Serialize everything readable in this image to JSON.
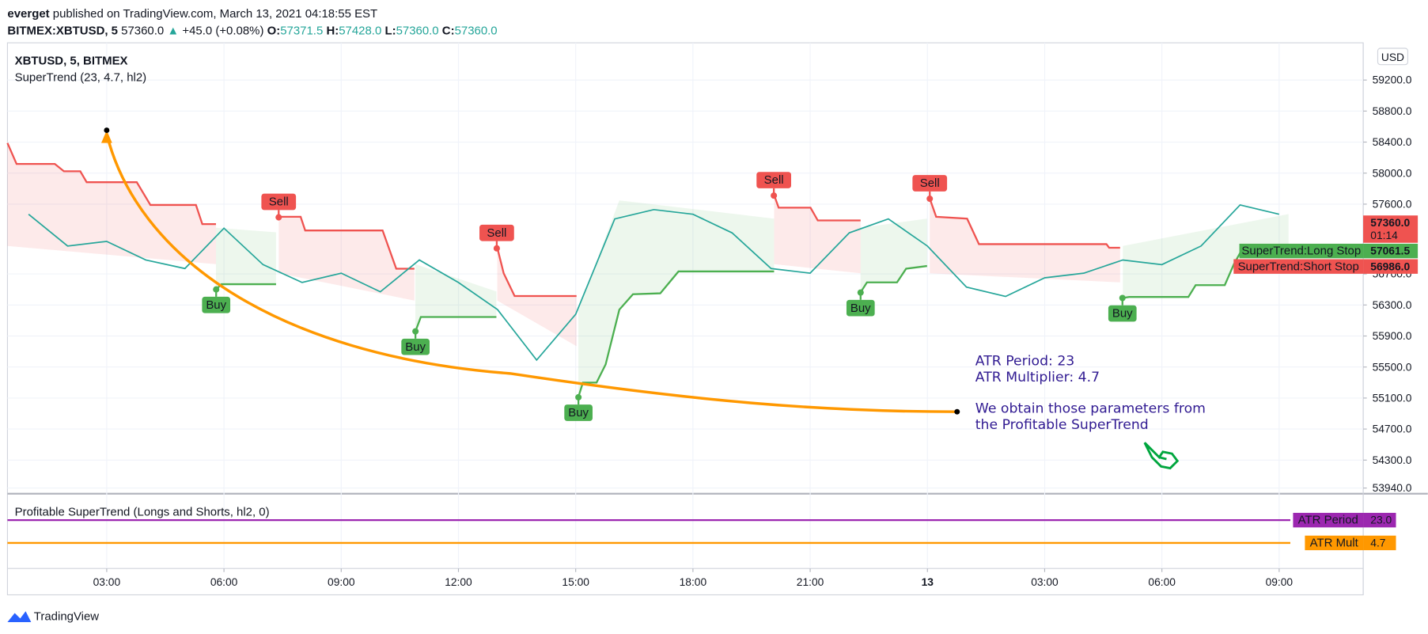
{
  "header": {
    "author": "everget",
    "published": " published on TradingView.com, March 13, 2021 04:18:55 EST",
    "symbol": "BITMEX:XBTUSD, 5",
    "last": "57360.0",
    "arrow": "▲",
    "change": "+45.0 (+0.08%)",
    "ohlc": [
      {
        "key": "O:",
        "value": "57371.5"
      },
      {
        "key": "H:",
        "value": "57428.0"
      },
      {
        "key": "L:",
        "value": "57360.0"
      },
      {
        "key": "C:",
        "value": "57360.0"
      }
    ]
  },
  "chart_data": {
    "type": "line",
    "title": "XBTUSD, 5, BITMEX",
    "subtitle": "SuperTrend (23, 4.7, hl2)",
    "color": "#26a69a",
    "x": [
      1,
      2,
      3,
      4,
      5,
      6,
      7,
      8,
      9,
      10,
      11,
      12,
      13,
      14,
      15,
      16,
      17,
      18,
      19,
      20,
      21,
      22,
      23,
      24,
      25,
      26,
      27,
      28,
      29,
      30,
      31,
      32,
      33
    ],
    "values": [
      57470,
      57060,
      57120,
      56880,
      56770,
      57290,
      56820,
      56590,
      56710,
      56470,
      56880,
      56590,
      56240,
      55590,
      56180,
      57410,
      57530,
      57470,
      57230,
      56770,
      56710,
      57230,
      57410,
      57060,
      56530,
      56410,
      56650,
      56710,
      56880,
      56820,
      57060,
      57590,
      57470
    ],
    "xlim": [
      0.46,
      35.15
    ],
    "xticks": [
      {
        "value": 3,
        "label": "03:00"
      },
      {
        "value": 6,
        "label": "06:00"
      },
      {
        "value": 9,
        "label": "09:00"
      },
      {
        "value": 12,
        "label": "12:00"
      },
      {
        "value": 15,
        "label": "15:00"
      },
      {
        "value": 18,
        "label": "18:00"
      },
      {
        "value": 21,
        "label": "21:00"
      },
      {
        "value": 24,
        "label": "13"
      },
      {
        "value": 27,
        "label": "03:00"
      },
      {
        "value": 30,
        "label": "06:00"
      },
      {
        "value": 33,
        "label": "09:00"
      }
    ],
    "ylim": [
      53890,
      59680
    ],
    "yticks": [
      {
        "value": 59200,
        "label": "59200.0"
      },
      {
        "value": 58800,
        "label": "58800.0"
      },
      {
        "value": 58400,
        "label": "58400.0"
      },
      {
        "value": 58000,
        "label": "58000.0"
      },
      {
        "value": 57600,
        "label": "57600.0"
      },
      {
        "value": 56700,
        "label": "56700.0"
      },
      {
        "value": 56300,
        "label": "56300.0"
      },
      {
        "value": 55900,
        "label": "55900.0"
      },
      {
        "value": 55500,
        "label": "55500.0"
      },
      {
        "value": 55100,
        "label": "55100.0"
      },
      {
        "value": 54700,
        "label": "54700.0"
      },
      {
        "value": 54300,
        "label": "54300.0"
      },
      {
        "value": 53940,
        "label": "53940.0"
      }
    ],
    "grid": true,
    "currency": "USD",
    "signals": [
      {
        "label": "Buy",
        "x": 5.8,
        "price": 56500,
        "color": "#4caf50"
      },
      {
        "label": "Sell",
        "x": 7.4,
        "price": 57430,
        "color": "#ef5350"
      },
      {
        "label": "Buy",
        "x": 10.9,
        "price": 55960,
        "color": "#4caf50"
      },
      {
        "label": "Sell",
        "x": 12.98,
        "price": 57030,
        "color": "#ef5350"
      },
      {
        "label": "Buy",
        "x": 15.07,
        "price": 55110,
        "color": "#4caf50"
      },
      {
        "label": "Sell",
        "x": 20.07,
        "price": 57710,
        "color": "#ef5350"
      },
      {
        "label": "Buy",
        "x": 22.29,
        "price": 56460,
        "color": "#4caf50"
      },
      {
        "label": "Sell",
        "x": 24.06,
        "price": 57670,
        "color": "#ef5350"
      },
      {
        "label": "Buy",
        "x": 28.99,
        "price": 56390,
        "color": "#4caf50"
      }
    ],
    "tags": [
      {
        "value": 57360,
        "label": "57360.0",
        "sub": "01:14",
        "color": "#ef5350"
      },
      {
        "value": 57061.5,
        "label": "57061.5",
        "name": "SuperTrend:Long Stop",
        "color": "#4caf50"
      },
      {
        "value": 56986,
        "label": "56986.0",
        "name": "SuperTrend:Short Stop",
        "color": "#ef5350"
      }
    ],
    "annotations": [
      "ATR Period: 23",
      "ATR Multiplier: 4.7",
      "We obtain those parameters from",
      "the Profitable SuperTrend"
    ]
  },
  "indicator": {
    "title": "Profitable SuperTrend (Longs and Shorts, hl2, 0)",
    "lines": [
      {
        "name": "ATR Period",
        "value": 23,
        "value_label": "23.0",
        "color": "#9c27b0"
      },
      {
        "name": "ATR Mult",
        "value": 4.7,
        "value_label": "4.7",
        "color": "#ff9800"
      }
    ]
  },
  "footer": {
    "brand": "TradingView"
  }
}
